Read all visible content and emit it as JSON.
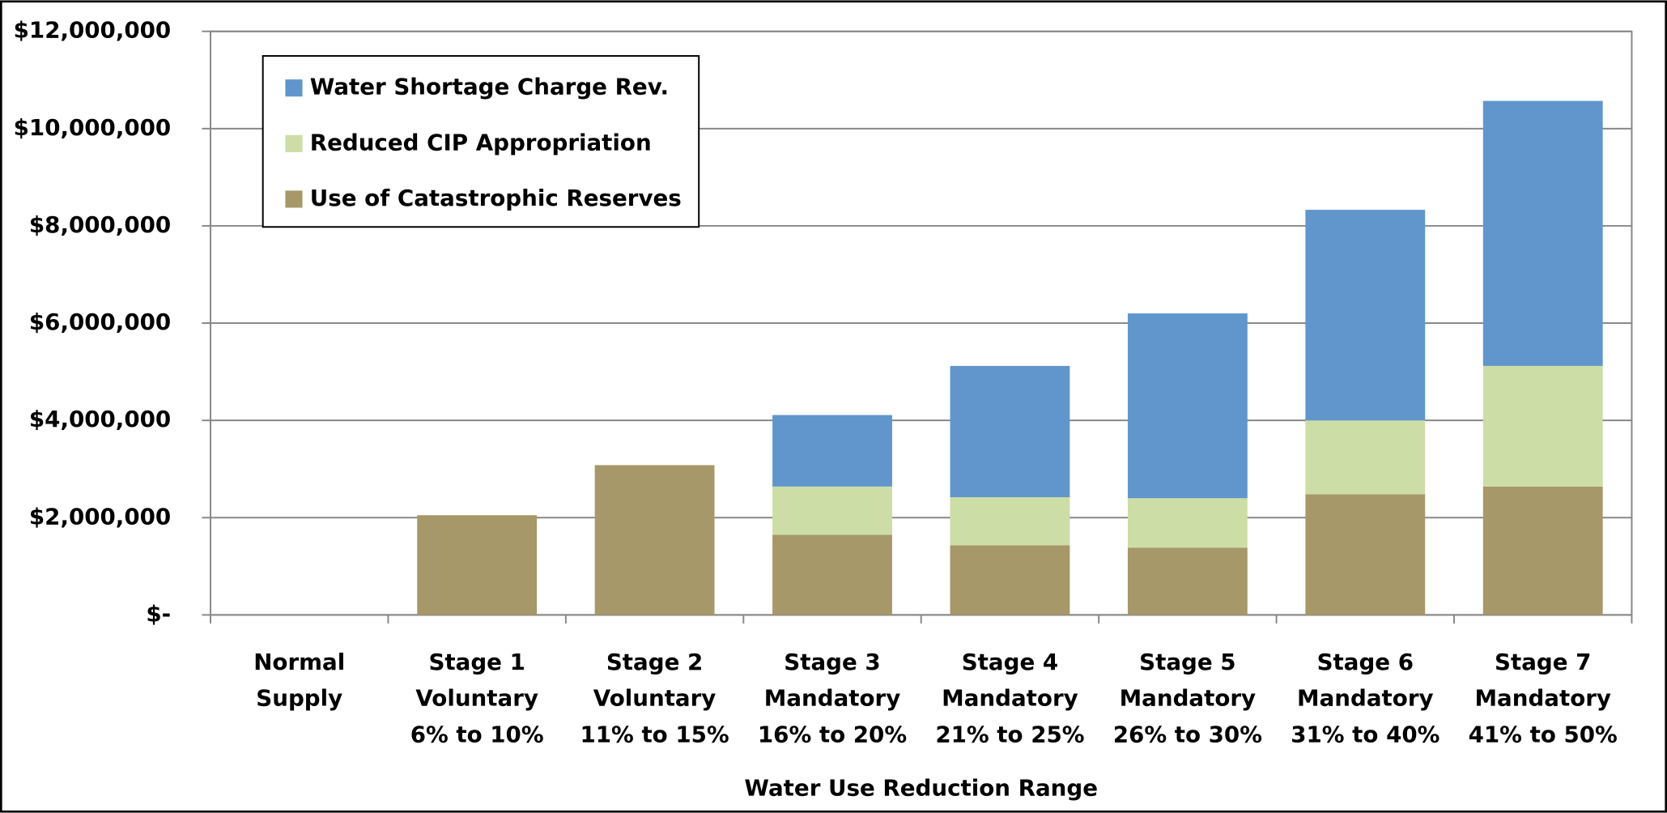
{
  "chart_data": {
    "type": "stacked_bar",
    "x_label": "Water Use Reduction Range",
    "categories": [
      "Normal\nSupply",
      "Stage 1\nVoluntary\n6% to 10%",
      "Stage 2\nVoluntary\n11% to 15%",
      "Stage 3\nMandatory\n16% to 20%",
      "Stage 4\nMandatory\n21% to 25%",
      "Stage 5\nMandatory\n26% to 30%",
      "Stage 6\nMandatory\n31% to 40%",
      "Stage 7\nMandatory\n41% to 50%"
    ],
    "series": [
      {
        "name": "Use of Catastrophic Reserves",
        "color": "#a69868",
        "values": [
          0,
          2050000,
          3080000,
          1650000,
          1430000,
          1380000,
          2480000,
          2640000
        ]
      },
      {
        "name": "Reduced CIP Appropriation",
        "color": "#cddda6",
        "values": [
          0,
          0,
          0,
          990000,
          990000,
          1020000,
          1520000,
          2480000
        ]
      },
      {
        "name": "Water Shortage Charge Rev.",
        "color": "#6096cc",
        "values": [
          0,
          0,
          0,
          1470000,
          2700000,
          3800000,
          4330000,
          5450000
        ]
      }
    ],
    "ylim": [
      0,
      12000000
    ],
    "yticks": [
      {
        "value": 0,
        "label": "$-"
      },
      {
        "value": 2000000,
        "label": "$2,000,000"
      },
      {
        "value": 4000000,
        "label": "$4,000,000"
      },
      {
        "value": 6000000,
        "label": "$6,000,000"
      },
      {
        "value": 8000000,
        "label": "$8,000,000"
      },
      {
        "value": 10000000,
        "label": "$10,000,000"
      },
      {
        "value": 12000000,
        "label": "$12,000,000"
      }
    ],
    "grid": true
  }
}
